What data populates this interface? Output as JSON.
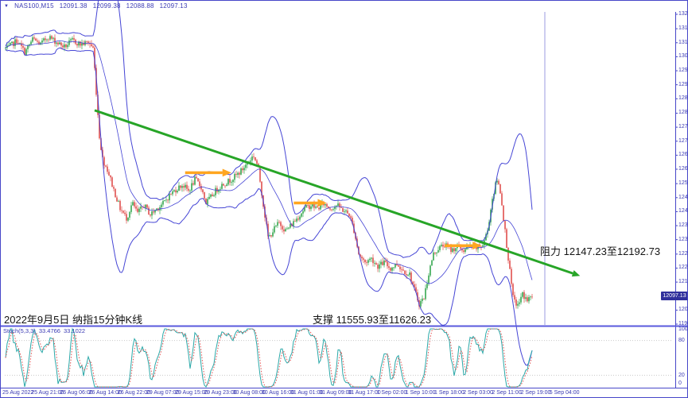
{
  "window": {
    "dropdown_icon": "▼",
    "symbol": "NAS100,M15",
    "open": "12091.38",
    "high": "12099.38",
    "low": "12088.88",
    "close": "12097.13"
  },
  "price_axis": {
    "current_price": "12097.13"
  },
  "annotations": {
    "date_note": "2022年9月5日 纳指15分钟K线",
    "support_note": "支撑 11555.93至11626.23",
    "resistance_note": "阻力 12147.23至12192.73"
  },
  "indicator": {
    "label": "Stoch(5,3,3)",
    "value_main": "33.4766",
    "value_signal": "33.1022",
    "scale_labels": [
      "100",
      "80",
      "20",
      "0"
    ]
  },
  "colors": {
    "frame": "#4646c8",
    "axis_text": "#3a3ab4",
    "divider": "#5959dd",
    "separator_line": "#9b9be0",
    "candle_up": "#35a74f",
    "candle_down": "#e0504e",
    "bands": "#4545d5",
    "stoch_k": "#2aa8a8",
    "stoch_d": "#e05050",
    "grid_dotted": "#c9c9c9",
    "trend": "#27a527",
    "arrow": "#ffa620",
    "tag_bg": "#30309c",
    "note_text": "#141414"
  },
  "chart_data": {
    "type": "candlestick",
    "symbol": "NAS100",
    "timeframe": "M15",
    "ohlc_last": {
      "open": 12091.38,
      "high": 12099.38,
      "low": 12088.88,
      "close": 12097.13
    },
    "price_axis_range": [
      11984.6,
      13225.6
    ],
    "y_tick_labels": [
      "13225.60",
      "13167.80",
      "13111.70",
      "13055.60",
      "12999.50",
      "12943.40",
      "12887.30",
      "12829.50",
      "12773.40",
      "12717.30",
      "12661.20",
      "12605.10",
      "12547.30",
      "12491.20",
      "12435.10",
      "12379.00",
      "12322.90",
      "12265.10",
      "12209.00",
      "12152.90",
      "12040.70",
      "11984.60"
    ],
    "x_tick_labels": [
      "25 Aug 2022",
      "25 Aug 21:00",
      "26 Aug 06:00",
      "26 Aug 14:00",
      "26 Aug 22:00",
      "29 Aug 07:00",
      "29 Aug 15:00",
      "29 Aug 23:00",
      "30 Aug 08:00",
      "30 Aug 16:00",
      "31 Aug 01:00",
      "31 Aug 09:00",
      "31 Aug 17:00",
      "1 Sep 02:00",
      "1 Sep 10:00",
      "1 Sep 18:00",
      "2 Sep 03:00",
      "2 Sep 11:00",
      "2 Sep 19:00",
      "5 Sep 04:00"
    ],
    "support_zone": [
      11555.93,
      11626.23
    ],
    "resistance_zone": [
      12147.23,
      12192.73
    ],
    "stochastic": {
      "k": 33.4766,
      "d": 33.1022,
      "levels": [
        20,
        80
      ]
    },
    "overlays": {
      "bollinger_bands": true,
      "trendline": {
        "from": [
          0.134,
          12841
        ],
        "to": [
          0.858,
          12178
        ]
      },
      "arrows": [
        {
          "from": [
            0.269,
            12591
          ],
          "to": [
            0.338,
            12591
          ]
        },
        {
          "from": [
            0.431,
            12470
          ],
          "to": [
            0.48,
            12470
          ]
        },
        {
          "from": [
            0.656,
            12299
          ],
          "to": [
            0.711,
            12299
          ]
        }
      ]
    },
    "price_path": [
      [
        0.004,
        13089
      ],
      [
        0.018,
        13121
      ],
      [
        0.03,
        13073
      ],
      [
        0.042,
        13127
      ],
      [
        0.053,
        13105
      ],
      [
        0.065,
        13137
      ],
      [
        0.077,
        13114
      ],
      [
        0.089,
        13095
      ],
      [
        0.101,
        13121
      ],
      [
        0.113,
        13105
      ],
      [
        0.125,
        13114
      ],
      [
        0.132,
        13089
      ],
      [
        0.136,
        12930
      ],
      [
        0.141,
        12740
      ],
      [
        0.146,
        12645
      ],
      [
        0.154,
        12597
      ],
      [
        0.163,
        12518
      ],
      [
        0.172,
        12448
      ],
      [
        0.182,
        12407
      ],
      [
        0.19,
        12470
      ],
      [
        0.198,
        12429
      ],
      [
        0.208,
        12461
      ],
      [
        0.217,
        12423
      ],
      [
        0.227,
        12448
      ],
      [
        0.237,
        12470
      ],
      [
        0.246,
        12502
      ],
      [
        0.255,
        12524
      ],
      [
        0.265,
        12543
      ],
      [
        0.274,
        12518
      ],
      [
        0.284,
        12565
      ],
      [
        0.293,
        12533
      ],
      [
        0.3,
        12470
      ],
      [
        0.307,
        12492
      ],
      [
        0.314,
        12518
      ],
      [
        0.324,
        12543
      ],
      [
        0.333,
        12556
      ],
      [
        0.343,
        12575
      ],
      [
        0.352,
        12597
      ],
      [
        0.362,
        12629
      ],
      [
        0.371,
        12661
      ],
      [
        0.378,
        12613
      ],
      [
        0.386,
        12454
      ],
      [
        0.393,
        12327
      ],
      [
        0.4,
        12359
      ],
      [
        0.409,
        12391
      ],
      [
        0.419,
        12359
      ],
      [
        0.428,
        12384
      ],
      [
        0.438,
        12416
      ],
      [
        0.447,
        12448
      ],
      [
        0.457,
        12461
      ],
      [
        0.466,
        12448
      ],
      [
        0.476,
        12467
      ],
      [
        0.485,
        12448
      ],
      [
        0.495,
        12461
      ],
      [
        0.504,
        12442
      ],
      [
        0.514,
        12423
      ],
      [
        0.521,
        12359
      ],
      [
        0.528,
        12264
      ],
      [
        0.537,
        12232
      ],
      [
        0.547,
        12248
      ],
      [
        0.556,
        12216
      ],
      [
        0.566,
        12232
      ],
      [
        0.575,
        12207
      ],
      [
        0.585,
        12226
      ],
      [
        0.594,
        12200
      ],
      [
        0.604,
        12184
      ],
      [
        0.611,
        12121
      ],
      [
        0.618,
        12067
      ],
      [
        0.625,
        12089
      ],
      [
        0.632,
        12184
      ],
      [
        0.639,
        12264
      ],
      [
        0.647,
        12289
      ],
      [
        0.656,
        12302
      ],
      [
        0.666,
        12280
      ],
      [
        0.675,
        12296
      ],
      [
        0.684,
        12280
      ],
      [
        0.694,
        12296
      ],
      [
        0.703,
        12289
      ],
      [
        0.713,
        12302
      ],
      [
        0.72,
        12359
      ],
      [
        0.727,
        12486
      ],
      [
        0.734,
        12565
      ],
      [
        0.739,
        12518
      ],
      [
        0.746,
        12359
      ],
      [
        0.753,
        12200
      ],
      [
        0.758,
        12089
      ],
      [
        0.765,
        12057
      ],
      [
        0.772,
        12105
      ],
      [
        0.779,
        12080
      ],
      [
        0.787,
        12097
      ]
    ]
  }
}
